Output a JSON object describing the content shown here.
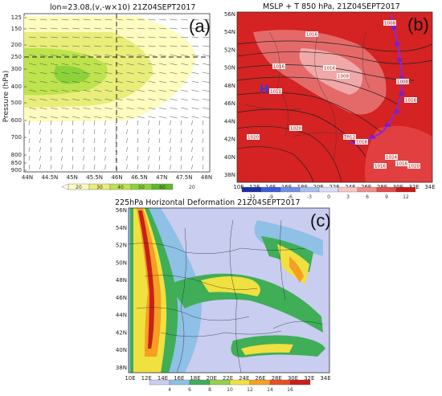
{
  "chart_data": [
    {
      "type": "heatmap",
      "panel": "(a)",
      "title": "lon=23.08,(v,-w×10) 21Z04SEPT2017",
      "ylabel": "Pressure (hPa)",
      "x_ticks": [
        "44N",
        "44.5N",
        "45N",
        "45.5N",
        "46N",
        "46.5N",
        "47N",
        "47.5N",
        "48N"
      ],
      "y_ticks": [
        "125",
        "150",
        "200",
        "250",
        "300",
        "400",
        "500",
        "600",
        "700",
        "800",
        "850",
        "900"
      ],
      "colorbar": [
        "20",
        "30",
        "40",
        "50",
        "60"
      ],
      "colorbar_colors": [
        "#fffcc0",
        "#e9ed7a",
        "#bde34d",
        "#8cd33a",
        "#5cba29"
      ],
      "colorbar_extra": "20",
      "reference_lines": {
        "vertical_x": "46N",
        "horizontal_y_hPa": 225
      }
    },
    {
      "type": "heatmap",
      "panel": "(b)",
      "title": "MSLP + T 850 hPa, 21Z04SEPT2017",
      "x_ticks": [
        "10E",
        "12E",
        "14E",
        "16E",
        "18E",
        "20E",
        "22E",
        "24E",
        "26E",
        "28E",
        "30E",
        "32E",
        "34E"
      ],
      "y_ticks": [
        "56N",
        "54N",
        "52N",
        "50N",
        "48N",
        "46N",
        "44N",
        "42N",
        "40N",
        "38N"
      ],
      "colorbar": [
        "-12",
        "-9",
        "-6",
        "-3",
        "0",
        "3",
        "6",
        "9",
        "12"
      ],
      "colorbar_colors": [
        "#1a2ea8",
        "#3b5bd6",
        "#6f8fe6",
        "#a9bdf2",
        "#d8def5",
        "#f6c6c6",
        "#ef8d8d",
        "#e24c4c",
        "#c81818"
      ],
      "isobar_labels": [
        "1016",
        "1016",
        "1008",
        "1008",
        "1012",
        "1008",
        "1016",
        "1016",
        "1020",
        "1020",
        "1016",
        "1012",
        "1016",
        "1016",
        "1020",
        "1024"
      ],
      "high_marker": "H"
    },
    {
      "type": "heatmap",
      "panel": "(c)",
      "title": "225hPa Horizontal Deformation 21Z04SEPT2017",
      "x_ticks": [
        "10E",
        "12E",
        "14E",
        "16E",
        "18E",
        "20E",
        "22E",
        "24E",
        "26E",
        "28E",
        "30E",
        "32E",
        "34E"
      ],
      "y_ticks": [
        "56N",
        "54N",
        "52N",
        "50N",
        "48N",
        "46N",
        "44N",
        "42N",
        "40N",
        "38N"
      ],
      "colorbar": [
        "4",
        "6",
        "8",
        "10",
        "12",
        "14",
        "16"
      ],
      "colorbar_colors": [
        "#c9cdf0",
        "#8fc0e6",
        "#3fae57",
        "#96d04b",
        "#f0e040",
        "#f5a020",
        "#e85020",
        "#c8201a"
      ]
    }
  ]
}
